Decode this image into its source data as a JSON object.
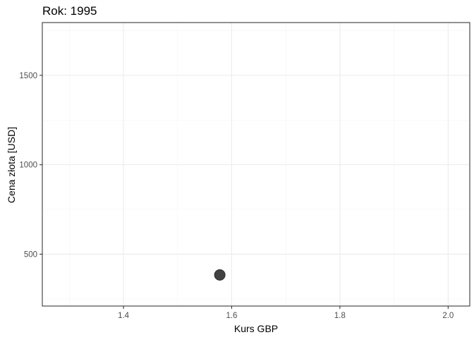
{
  "chart_data": {
    "type": "scatter",
    "title": "Rok: 1995",
    "xlabel": "Kurs GBP",
    "ylabel": "Cena złota [USD]",
    "xlim": [
      1.25,
      2.04
    ],
    "ylim": [
      210,
      1795
    ],
    "x_ticks": [
      1.4,
      1.6,
      1.8,
      2.0
    ],
    "x_tick_labels": [
      "1.4",
      "1.6",
      "1.8",
      "2.0"
    ],
    "x_minor": [
      1.3,
      1.5,
      1.7,
      1.9
    ],
    "y_ticks": [
      500,
      1000,
      1500
    ],
    "y_tick_labels": [
      "500",
      "1000",
      "1500"
    ],
    "y_minor": [
      250,
      750,
      1250,
      1750
    ],
    "grid": true,
    "point_color": "#424242",
    "points": [
      {
        "x": 1.578,
        "y": 384
      }
    ]
  }
}
